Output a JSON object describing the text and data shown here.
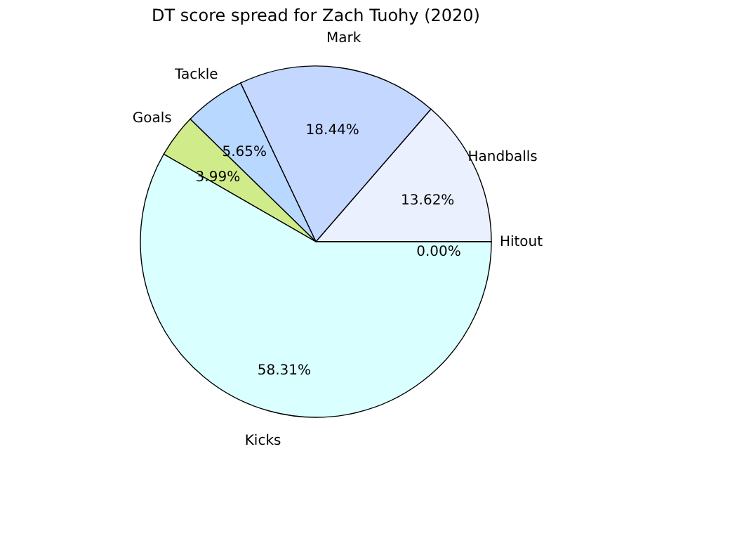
{
  "chart_data": {
    "type": "pie",
    "title": "DT score spread for Zach Tuohy (2020)",
    "categories": [
      "Handballs",
      "Mark",
      "Tackle",
      "Goals",
      "Kicks",
      "Hitout"
    ],
    "values": [
      13.62,
      18.44,
      5.65,
      3.99,
      58.31,
      0.0
    ],
    "colors": [
      "#ebf0ff",
      "#c4d7ff",
      "#b8d8ff",
      "#d0eb8a",
      "#d9ffff",
      "#ffffff"
    ],
    "value_labels": [
      "13.62%",
      "18.44%",
      "5.65%",
      "3.99%",
      "58.31%",
      "0.00%"
    ]
  }
}
